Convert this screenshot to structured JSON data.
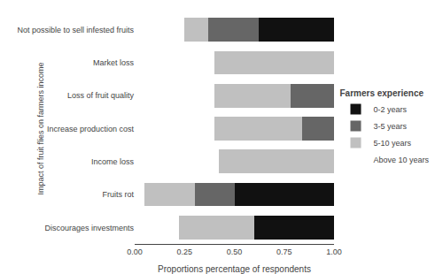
{
  "chart_data": {
    "type": "bar",
    "orientation": "horizontal",
    "stacked": true,
    "categories": [
      "Not possible to sell infested fruits",
      "Market loss",
      "Loss of fruit quality",
      "Increase production cost",
      "Income loss",
      "Fruits rot",
      "Discourages investments"
    ],
    "series": [
      {
        "name": "Above 10 years",
        "color": "#ffffff",
        "values": [
          0.25,
          0.4,
          0.4,
          0.4,
          0.42,
          0.05,
          0.22
        ]
      },
      {
        "name": "5-10 years",
        "color": "#c0c0c0",
        "values": [
          0.12,
          0.6,
          0.38,
          0.44,
          0.58,
          0.25,
          0.38
        ]
      },
      {
        "name": "3-5 years",
        "color": "#666666",
        "values": [
          0.25,
          0.0,
          0.22,
          0.16,
          0.0,
          0.2,
          0.0
        ]
      },
      {
        "name": "0-2 years",
        "color": "#111111",
        "values": [
          0.38,
          0.0,
          0.0,
          0.0,
          0.0,
          0.5,
          0.4
        ]
      }
    ],
    "xlabel": "Proportions percentage of respondents",
    "ylabel": "Impact of fruit flies on farmers income",
    "legend_title": "Farmers experience",
    "xlim": [
      0.0,
      1.0
    ],
    "xticks": [
      {
        "value": 0.0,
        "label": "0.00"
      },
      0.25,
      {
        "value": 0.5,
        "label": "0.50"
      },
      0.75,
      {
        "value": 1.0,
        "label": "1.00"
      }
    ],
    "grid": false,
    "legend": "right"
  }
}
